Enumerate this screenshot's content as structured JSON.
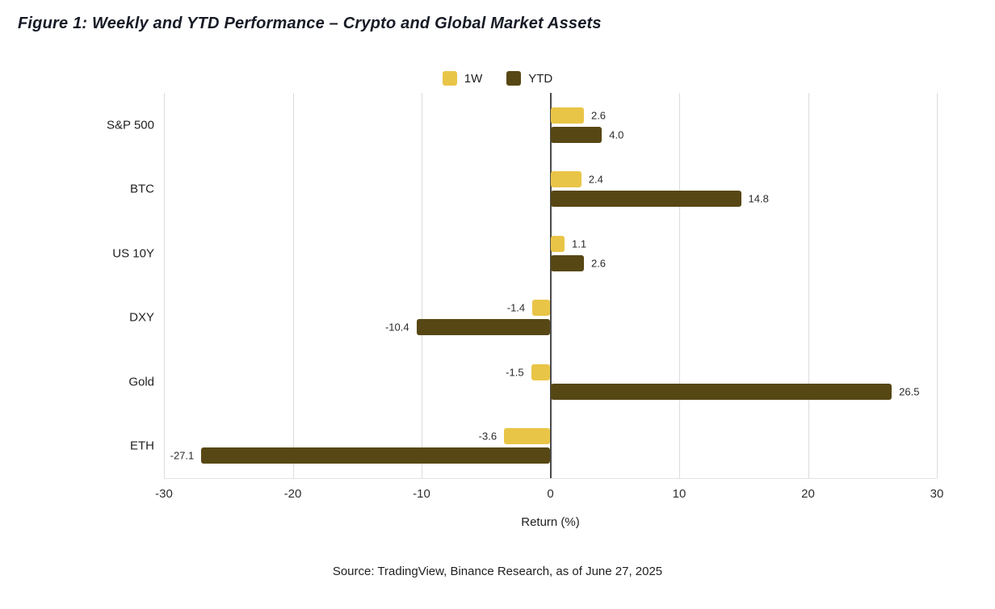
{
  "title": "Figure 1: Weekly and YTD Performance – Crypto and Global Market Assets",
  "source": "Source: TradingView, Binance Research, as of June 27, 2025",
  "colors": {
    "one_week": "#e9c547",
    "ytd": "#574714",
    "gridline": "#dcdcdc",
    "zero_line": "#4a4a4a"
  },
  "chart_data": {
    "type": "bar",
    "orientation": "horizontal",
    "title": "Weekly and YTD Performance – Crypto and Global Market Assets",
    "categories": [
      "S&P 500",
      "BTC",
      "US 10Y",
      "DXY",
      "Gold",
      "ETH"
    ],
    "series": [
      {
        "name": "1W",
        "color": "#e9c547",
        "values": [
          2.6,
          2.4,
          1.1,
          -1.4,
          -1.5,
          -3.6
        ]
      },
      {
        "name": "YTD",
        "color": "#574714",
        "values": [
          4.0,
          14.8,
          2.6,
          -10.4,
          26.5,
          -27.1
        ]
      }
    ],
    "xlabel": "Return (%)",
    "ylabel": "",
    "xlim": [
      -30,
      30
    ],
    "xticks": [
      -30,
      -20,
      -10,
      0,
      10,
      20,
      30
    ],
    "grid": true,
    "legend_position": "top",
    "value_label_format": "one_decimal"
  }
}
